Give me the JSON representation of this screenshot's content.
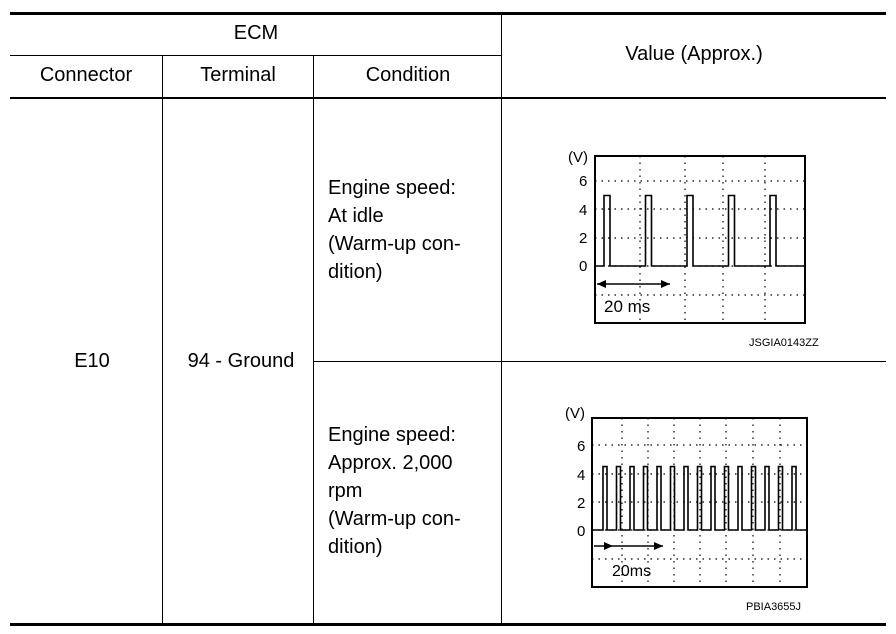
{
  "table": {
    "header": {
      "group_label": "ECM",
      "connector_label": "Connector",
      "terminal_label": "Terminal",
      "condition_label": "Condition",
      "value_label": "Value (Approx.)"
    },
    "row": {
      "connector": "E10",
      "terminal": "94 - Ground",
      "conditions": [
        {
          "lines": [
            "Engine speed:",
            "At idle",
            "(Warm-up con-",
            "dition)"
          ],
          "waveform": {
            "unit_label": "(V)",
            "y_ticks": [
              "6",
              "4",
              "2",
              "0"
            ],
            "time_label": "20 ms",
            "code": "JSGIA0143ZZ",
            "pulse_high_v": 5,
            "pulse_count": 5
          }
        },
        {
          "lines": [
            "Engine speed:",
            "Approx. 2,000",
            "rpm",
            "(Warm-up con-",
            "dition)"
          ],
          "waveform": {
            "unit_label": "(V)",
            "y_ticks": [
              "6",
              "4",
              "2",
              "0"
            ],
            "time_label": "20ms",
            "code": "PBIA3655J",
            "pulse_high_v": 4.5,
            "pulse_count": 16
          }
        }
      ]
    }
  }
}
